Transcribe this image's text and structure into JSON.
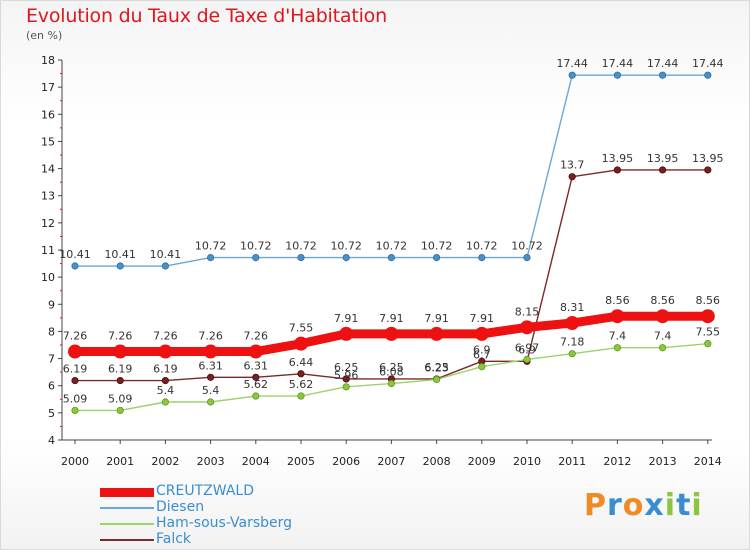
{
  "header": {
    "title": "Evolution du Taux de Taxe d'Habitation",
    "subtitle": "(en %)"
  },
  "logo": {
    "letters": [
      "P",
      "r",
      "o",
      "x",
      "i",
      "t",
      "i"
    ],
    "colors": [
      "#f08a24",
      "#3a8ecf",
      "#f08a24",
      "#3a8ecf",
      "#8cc63f",
      "#3a8ecf",
      "#8cc63f"
    ]
  },
  "chart_data": {
    "type": "line",
    "x": [
      "2000",
      "2001",
      "2002",
      "2003",
      "2004",
      "2005",
      "2006",
      "2007",
      "2008",
      "2009",
      "2010",
      "2011",
      "2012",
      "2013",
      "2014"
    ],
    "ylim": [
      4,
      18
    ],
    "yticks": [
      "4",
      "5",
      "6",
      "7",
      "8",
      "9",
      "10",
      "11",
      "12",
      "13",
      "14",
      "15",
      "16",
      "17",
      "18"
    ],
    "grid": false,
    "legend_position": "bottom-left",
    "series": [
      {
        "name": "CREUTZWALD",
        "color": "#ee1111",
        "values": [
          7.26,
          7.26,
          7.26,
          7.26,
          7.26,
          7.55,
          7.91,
          7.91,
          7.91,
          7.91,
          8.15,
          8.31,
          8.56,
          8.56,
          8.56
        ],
        "labels": [
          "7.26",
          "7.26",
          "7.26",
          "7.26",
          "7.26",
          "7.55",
          "7.91",
          "7.91",
          "7.91",
          "7.91",
          "8.15",
          "8.31",
          "8.56",
          "8.56",
          "8.56"
        ]
      },
      {
        "name": "Diesen",
        "color": "#6aa7d8",
        "values": [
          10.41,
          10.41,
          10.41,
          10.72,
          10.72,
          10.72,
          10.72,
          10.72,
          10.72,
          10.72,
          10.72,
          17.44,
          17.44,
          17.44,
          17.44
        ],
        "labels": [
          "10.41",
          "10.41",
          "10.41",
          "10.72",
          "10.72",
          "10.72",
          "10.72",
          "10.72",
          "10.72",
          "10.72",
          "10.72",
          "17.44",
          "17.44",
          "17.44",
          "17.44"
        ]
      },
      {
        "name": "Ham-sous-Varsberg",
        "color": "#9bd36a",
        "values": [
          5.09,
          5.09,
          5.4,
          5.4,
          5.62,
          5.62,
          5.96,
          6.08,
          6.23,
          6.7,
          6.97,
          7.18,
          7.4,
          7.4,
          7.55
        ],
        "labels": [
          "5.09",
          "5.09",
          "5.4",
          "5.4",
          "5.62",
          "5.62",
          "5.96",
          "6.08",
          "6.23",
          "6.7",
          "6.97",
          "7.18",
          "7.4",
          "7.4",
          "7.55"
        ]
      },
      {
        "name": "Falck",
        "color": "#7a2a2a",
        "values": [
          6.19,
          6.19,
          6.19,
          6.31,
          6.31,
          6.44,
          6.25,
          6.25,
          6.25,
          6.9,
          6.9,
          13.7,
          13.95,
          13.95,
          13.95
        ],
        "labels": [
          "6.19",
          "6.19",
          "6.19",
          "6.31",
          "6.31",
          "6.44",
          "6.25",
          "6.25",
          "6.25",
          "6.9",
          "6.9",
          "13.7",
          "13.95",
          "13.95",
          "13.95"
        ]
      }
    ]
  }
}
